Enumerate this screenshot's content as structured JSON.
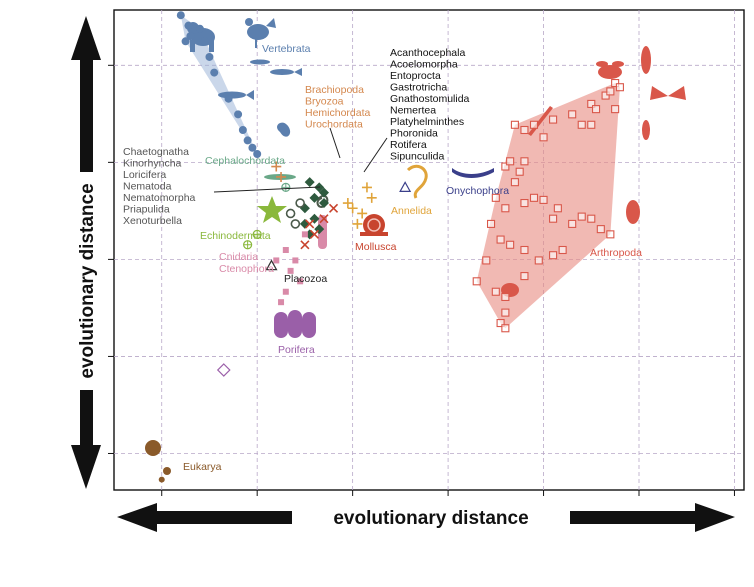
{
  "chart_data": {
    "type": "scatter",
    "title": "",
    "xlabel": "evolutionary distance",
    "ylabel": "evolutionary distance",
    "xlim": [
      0,
      6.6
    ],
    "ylim": [
      0,
      4.6
    ],
    "grid": true,
    "series": [
      {
        "name": "Vertebrata",
        "color": "#5b7fae",
        "marker": "circle",
        "hull": true,
        "points": [
          [
            0.7,
            4.55
          ],
          [
            0.78,
            4.45
          ],
          [
            0.8,
            4.35
          ],
          [
            0.75,
            4.3
          ],
          [
            0.9,
            4.42
          ],
          [
            0.95,
            4.3
          ],
          [
            1.0,
            4.15
          ],
          [
            1.05,
            4.0
          ],
          [
            1.2,
            3.75
          ],
          [
            1.3,
            3.6
          ],
          [
            1.35,
            3.45
          ],
          [
            1.4,
            3.35
          ],
          [
            1.45,
            3.28
          ],
          [
            1.5,
            3.22
          ]
        ]
      },
      {
        "name": "Cephalochordata",
        "color": "#6aa888",
        "marker": "crossed-circle",
        "points": [
          [
            1.8,
            2.9
          ]
        ]
      },
      {
        "name": "Echinodermata",
        "color": "#8ab83c",
        "marker": "crossed-circle",
        "points": [
          [
            1.4,
            2.35
          ],
          [
            1.5,
            2.45
          ]
        ]
      },
      {
        "name": "Brachiopoda / Bryozoa / Hemichordata / Urochordata",
        "color": "#d4884e",
        "marker": "cross",
        "points": [
          [
            1.7,
            3.1
          ],
          [
            1.75,
            3.0
          ]
        ]
      },
      {
        "name": "Acanthocephala … Sipunculida",
        "color": "#2e5a3e",
        "marker": "diamond",
        "points": [
          [
            2.05,
            2.95
          ],
          [
            2.15,
            2.9
          ],
          [
            2.1,
            2.8
          ],
          [
            2.2,
            2.75
          ],
          [
            2.0,
            2.7
          ],
          [
            2.1,
            2.6
          ],
          [
            2.0,
            2.55
          ],
          [
            2.15,
            2.5
          ],
          [
            2.2,
            2.85
          ],
          [
            2.05,
            2.45
          ]
        ]
      },
      {
        "name": "Chaetognatha … Xenoturbella",
        "color": "#4b5a4b",
        "marker": "ring",
        "points": [
          [
            1.85,
            2.65
          ],
          [
            1.9,
            2.55
          ],
          [
            1.95,
            2.75
          ]
        ]
      },
      {
        "name": "Mollusca",
        "color": "#c8442e",
        "marker": "x",
        "points": [
          [
            2.1,
            2.45
          ],
          [
            2.05,
            2.55
          ],
          [
            2.2,
            2.6
          ],
          [
            2.3,
            2.7
          ],
          [
            2.0,
            2.35
          ]
        ]
      },
      {
        "name": "Annelida",
        "color": "#e0a43a",
        "marker": "plus",
        "points": [
          [
            2.45,
            2.75
          ],
          [
            2.6,
            2.65
          ],
          [
            2.7,
            2.8
          ],
          [
            2.55,
            2.55
          ],
          [
            2.65,
            2.9
          ],
          [
            2.5,
            2.7
          ]
        ]
      },
      {
        "name": "Onychophora",
        "color": "#3a3f8a",
        "marker": "triangle",
        "points": [
          [
            3.05,
            2.9
          ]
        ]
      },
      {
        "name": "Cnidaria / Ctenophora",
        "color": "#d98aa8",
        "marker": "square",
        "points": [
          [
            1.8,
            2.3
          ],
          [
            1.9,
            2.2
          ],
          [
            1.85,
            2.1
          ],
          [
            1.95,
            2.0
          ],
          [
            1.8,
            1.9
          ],
          [
            1.7,
            2.2
          ],
          [
            2.0,
            2.45
          ],
          [
            1.75,
            1.8
          ]
        ]
      },
      {
        "name": "Placozoa",
        "color": "#333333",
        "marker": "triangle",
        "points": [
          [
            1.65,
            2.15
          ]
        ]
      },
      {
        "name": "Porifera",
        "color": "#9a5fa8",
        "marker": "diamond-open",
        "points": [
          [
            1.15,
            1.15
          ]
        ]
      },
      {
        "name": "Arthropoda",
        "color": "#d9574a",
        "marker": "square-open",
        "hull": true,
        "points": [
          [
            4.2,
            3.5
          ],
          [
            4.3,
            3.45
          ],
          [
            4.4,
            3.5
          ],
          [
            4.5,
            3.38
          ],
          [
            4.6,
            3.55
          ],
          [
            4.8,
            3.6
          ],
          [
            4.9,
            3.5
          ],
          [
            5.0,
            3.7
          ],
          [
            5.05,
            3.65
          ],
          [
            5.15,
            3.78
          ],
          [
            5.2,
            3.82
          ],
          [
            5.25,
            3.9
          ],
          [
            5.3,
            3.86
          ],
          [
            4.1,
            3.1
          ],
          [
            4.15,
            3.15
          ],
          [
            4.25,
            3.05
          ],
          [
            4.3,
            3.15
          ],
          [
            4.2,
            2.95
          ],
          [
            4.4,
            2.8
          ],
          [
            4.1,
            2.7
          ],
          [
            4.3,
            2.75
          ],
          [
            4.5,
            2.78
          ],
          [
            4.6,
            2.6
          ],
          [
            4.65,
            2.7
          ],
          [
            4.8,
            2.55
          ],
          [
            4.9,
            2.62
          ],
          [
            5.0,
            2.6
          ],
          [
            5.1,
            2.5
          ],
          [
            5.2,
            2.45
          ],
          [
            4.0,
            2.8
          ],
          [
            4.05,
            2.4
          ],
          [
            4.15,
            2.35
          ],
          [
            4.3,
            2.3
          ],
          [
            4.45,
            2.2
          ],
          [
            4.6,
            2.25
          ],
          [
            4.7,
            2.3
          ],
          [
            3.9,
            2.2
          ],
          [
            3.8,
            2.0
          ],
          [
            4.0,
            1.9
          ],
          [
            4.1,
            1.85
          ],
          [
            4.1,
            1.7
          ],
          [
            4.05,
            1.6
          ],
          [
            4.1,
            1.55
          ],
          [
            4.3,
            2.05
          ],
          [
            3.95,
            2.55
          ],
          [
            5.25,
            3.65
          ],
          [
            5.0,
            3.5
          ]
        ]
      },
      {
        "name": "Eukarya",
        "color": "#8a5a2a",
        "marker": "dot",
        "points": [
          [
            0.5,
            0.1
          ]
        ]
      }
    ],
    "labels": {
      "vertebrata": "Vertebrata",
      "cephalochordata": "Cephalochordata",
      "echinodermata": "Echinodermata",
      "group_orange": [
        "Brachiopoda",
        "Bryozoa",
        "Hemichordata",
        "Urochordata"
      ],
      "group_black": [
        "Acanthocephala",
        "Acoelomorpha",
        "Entoprocta",
        "Gastrotricha",
        "Gnathostomulida",
        "Nemertea",
        "Platyhelminthes",
        "Phoronida",
        "Rotifera",
        "Sipunculida"
      ],
      "group_gray": [
        "Chaetognatha",
        "Kinorhyncha",
        "Loricifera",
        "Nematoda",
        "Nematomorpha",
        "Priapulida",
        "Xenoturbella"
      ],
      "annelida": "Annelida",
      "onychophora": "Onychophora",
      "mollusca": "Mollusca",
      "cnidaria": "Cnidaria",
      "ctenophora": "Ctenophora",
      "placozoa": "Placozoa",
      "porifera": "Porifera",
      "arthropoda": "Arthropoda",
      "eukarya": "Eukarya"
    },
    "colors": {
      "axis": "#111111",
      "grid": "#b8a8c8",
      "vertebrata": "#5b7fae",
      "cephalochordata": "#6aa888",
      "echinodermata": "#8ab83c",
      "orange_group": "#d4884e",
      "black_group": "#111111",
      "gray_group": "#555555",
      "annelida": "#e0a43a",
      "onychophora": "#3a3f8a",
      "mollusca": "#c8442e",
      "cnidaria": "#d98aa8",
      "placozoa": "#333333",
      "porifera": "#9a5fa8",
      "arthropoda": "#d9574a",
      "eukarya": "#8a5a2a"
    }
  }
}
